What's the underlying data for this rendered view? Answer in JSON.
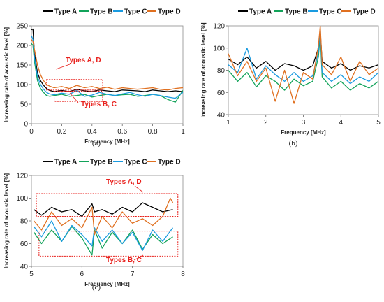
{
  "colors": {
    "Type A": "#000000",
    "Type B": "#12a35a",
    "Type C": "#1a9be0",
    "Type D": "#e07020",
    "annotation": "#e8201c"
  },
  "chart_data": [
    {
      "type": "line",
      "panel_label": "(a)",
      "xlabel": "Frequency   [MHz]",
      "ylabel": "Increasing rate of acoustic level   [%]",
      "xlim": [
        0,
        1
      ],
      "ylim": [
        0,
        250
      ],
      "xticks": [
        "0",
        "0.2",
        "0.4",
        "0.6",
        "0.8",
        "1"
      ],
      "yticks": [
        "0",
        "50",
        "100",
        "150",
        "200",
        "250"
      ],
      "grid": false,
      "legend": "top",
      "series": [
        {
          "name": "Type A",
          "x": [
            0,
            0.01,
            0.02,
            0.04,
            0.06,
            0.08,
            0.1,
            0.12,
            0.15,
            0.2,
            0.25,
            0.3,
            0.35,
            0.4,
            0.45,
            0.5,
            0.55,
            0.6,
            0.65,
            0.7,
            0.75,
            0.8,
            0.85,
            0.9,
            0.95,
            1.0
          ],
          "y": [
            240,
            242,
            180,
            130,
            110,
            98,
            90,
            85,
            82,
            85,
            82,
            88,
            84,
            82,
            86,
            84,
            82,
            86,
            85,
            84,
            82,
            86,
            84,
            82,
            84,
            82
          ]
        },
        {
          "name": "Type B",
          "x": [
            0,
            0.01,
            0.02,
            0.04,
            0.06,
            0.08,
            0.1,
            0.12,
            0.15,
            0.2,
            0.25,
            0.3,
            0.35,
            0.4,
            0.45,
            0.5,
            0.55,
            0.6,
            0.65,
            0.7,
            0.75,
            0.8,
            0.85,
            0.9,
            0.95,
            1.0
          ],
          "y": [
            205,
            200,
            160,
            110,
            90,
            80,
            72,
            70,
            72,
            75,
            70,
            72,
            75,
            68,
            72,
            75,
            72,
            74,
            75,
            70,
            72,
            75,
            72,
            62,
            55,
            85
          ]
        },
        {
          "name": "Type C",
          "x": [
            0,
            0.01,
            0.02,
            0.04,
            0.06,
            0.08,
            0.1,
            0.12,
            0.15,
            0.2,
            0.25,
            0.3,
            0.35,
            0.4,
            0.45,
            0.5,
            0.55,
            0.6,
            0.65,
            0.7,
            0.75,
            0.8,
            0.85,
            0.9,
            0.95,
            1.0
          ],
          "y": [
            225,
            215,
            170,
            120,
            100,
            88,
            80,
            76,
            74,
            78,
            75,
            85,
            70,
            73,
            80,
            75,
            72,
            76,
            80,
            74,
            70,
            75,
            72,
            68,
            65,
            80
          ]
        },
        {
          "name": "Type D",
          "x": [
            0,
            0.01,
            0.02,
            0.04,
            0.06,
            0.08,
            0.1,
            0.12,
            0.15,
            0.2,
            0.25,
            0.3,
            0.35,
            0.4,
            0.45,
            0.5,
            0.55,
            0.6,
            0.65,
            0.7,
            0.75,
            0.8,
            0.85,
            0.9,
            0.95,
            1.0
          ],
          "y": [
            215,
            210,
            190,
            150,
            125,
            110,
            100,
            96,
            92,
            95,
            90,
            98,
            92,
            95,
            90,
            93,
            88,
            92,
            90,
            88,
            90,
            92,
            88,
            86,
            90,
            92
          ]
        }
      ],
      "annotations": [
        {
          "text": "Types A, D",
          "box": {
            "x0": 0.1,
            "x1": 0.47,
            "y0": 86,
            "y1": 113
          }
        },
        {
          "text": "Types B, C",
          "box": {
            "x0": 0.15,
            "x1": 0.47,
            "y0": 57,
            "y1": 83
          }
        }
      ]
    },
    {
      "type": "line",
      "panel_label": "(b)",
      "xlabel": "Frequency   [MHz]",
      "ylabel": "Increasing rate of acoustic level   [%]",
      "xlim": [
        1,
        5
      ],
      "ylim": [
        40,
        120
      ],
      "xticks": [
        "1",
        "2",
        "3",
        "4",
        "5"
      ],
      "yticks": [
        "40",
        "60",
        "80",
        "100",
        "120"
      ],
      "grid": false,
      "legend": "top",
      "series": [
        {
          "name": "Type A",
          "x": [
            1,
            1.25,
            1.5,
            1.75,
            2,
            2.25,
            2.5,
            2.75,
            3,
            3.25,
            3.4,
            3.45,
            3.5,
            3.75,
            4,
            4.25,
            4.5,
            4.75,
            5
          ],
          "y": [
            90,
            85,
            92,
            82,
            88,
            80,
            86,
            84,
            80,
            84,
            100,
            115,
            88,
            82,
            86,
            80,
            84,
            82,
            85
          ]
        },
        {
          "name": "Type B",
          "x": [
            1,
            1.25,
            1.5,
            1.75,
            2,
            2.25,
            2.5,
            2.75,
            3,
            3.25,
            3.4,
            3.45,
            3.5,
            3.75,
            4,
            4.25,
            4.5,
            4.75,
            5
          ],
          "y": [
            80,
            70,
            78,
            65,
            75,
            70,
            62,
            72,
            66,
            70,
            92,
            112,
            74,
            64,
            70,
            62,
            68,
            64,
            70
          ]
        },
        {
          "name": "Type C",
          "x": [
            1,
            1.25,
            1.5,
            1.75,
            2,
            2.25,
            2.5,
            2.75,
            3,
            3.25,
            3.4,
            3.45,
            3.5,
            3.75,
            4,
            4.25,
            4.5,
            4.75,
            5
          ],
          "y": [
            85,
            78,
            100,
            72,
            84,
            76,
            70,
            78,
            70,
            75,
            96,
            118,
            78,
            70,
            76,
            68,
            74,
            70,
            78
          ]
        },
        {
          "name": "Type D",
          "x": [
            1,
            1.25,
            1.5,
            1.75,
            2,
            2.25,
            2.5,
            2.75,
            3,
            3.25,
            3.4,
            3.45,
            3.5,
            3.75,
            4,
            4.25,
            4.5,
            4.75,
            5
          ],
          "y": [
            95,
            75,
            88,
            70,
            82,
            52,
            80,
            50,
            78,
            72,
            102,
            120,
            85,
            76,
            92,
            70,
            88,
            76,
            82
          ]
        }
      ]
    },
    {
      "type": "line",
      "panel_label": "(c)",
      "xlabel": "Frequency   [MHz]",
      "ylabel": "Increasing rate of acoustic level   [%]",
      "xlim": [
        5,
        8
      ],
      "ylim": [
        40,
        120
      ],
      "xticks": [
        "5",
        "6",
        "7",
        "8"
      ],
      "yticks": [
        "40",
        "60",
        "80",
        "100",
        "120"
      ],
      "grid": false,
      "legend": "top",
      "series": [
        {
          "name": "Type A",
          "x": [
            5.05,
            5.2,
            5.4,
            5.6,
            5.8,
            6.0,
            6.2,
            6.25,
            6.4,
            6.6,
            6.8,
            7.0,
            7.2,
            7.4,
            7.6,
            7.8
          ],
          "y": [
            90,
            85,
            92,
            88,
            90,
            84,
            95,
            88,
            90,
            86,
            92,
            88,
            96,
            92,
            88,
            90
          ]
        },
        {
          "name": "Type B",
          "x": [
            5.05,
            5.2,
            5.4,
            5.6,
            5.8,
            6.0,
            6.2,
            6.25,
            6.4,
            6.6,
            6.8,
            7.0,
            7.2,
            7.4,
            7.6,
            7.8
          ],
          "y": [
            70,
            60,
            72,
            62,
            75,
            65,
            50,
            72,
            56,
            70,
            60,
            72,
            55,
            68,
            60,
            66
          ]
        },
        {
          "name": "Type C",
          "x": [
            5.05,
            5.2,
            5.4,
            5.6,
            5.8,
            6.0,
            6.2,
            6.25,
            6.4,
            6.6,
            6.8,
            7.0,
            7.2,
            7.4,
            7.6,
            7.8
          ],
          "y": [
            75,
            66,
            80,
            62,
            76,
            68,
            58,
            74,
            62,
            72,
            60,
            70,
            54,
            72,
            62,
            74
          ]
        },
        {
          "name": "Type D",
          "x": [
            5.05,
            5.2,
            5.4,
            5.6,
            5.8,
            6.0,
            6.2,
            6.25,
            6.4,
            6.6,
            6.8,
            7.0,
            7.2,
            7.4,
            7.6,
            7.75,
            7.8
          ],
          "y": [
            80,
            72,
            88,
            76,
            82,
            74,
            92,
            68,
            84,
            74,
            88,
            78,
            82,
            76,
            84,
            100,
            96
          ]
        }
      ],
      "annotations": [
        {
          "text": "Types A, D",
          "box": {
            "x0": 5.1,
            "x1": 7.9,
            "y0": 84,
            "y1": 104
          }
        },
        {
          "text": "Types B, C",
          "box": {
            "x0": 5.15,
            "x1": 7.9,
            "y0": 49,
            "y1": 71
          }
        }
      ]
    }
  ]
}
